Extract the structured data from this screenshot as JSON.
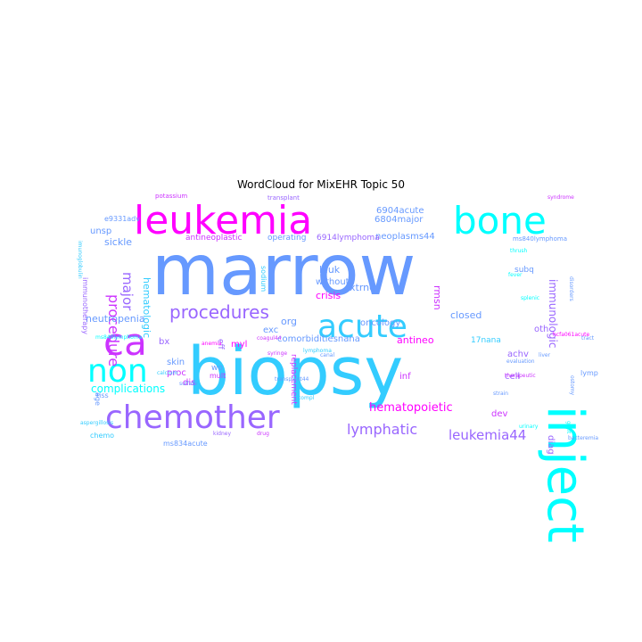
{
  "title": "WordCloud for MixEHR Topic 50",
  "words": [
    "marrow",
    "biopsy",
    "inject",
    "leukemia",
    "bone",
    "chemother",
    "acute",
    "ca",
    "non",
    "procedures",
    "procedure",
    "major",
    "lymphatic",
    "leukemia44",
    "hematopoietic",
    "complications",
    "neutropenia",
    "immunologic",
    "6904acute",
    "6804major",
    "unsp",
    "sickle",
    "hematologic",
    "neoplasms44",
    "closed",
    "cell",
    "achv",
    "oth",
    "diag",
    "xtrndl",
    "rmsn",
    "crisis",
    "without",
    "leuk",
    "antineo",
    "comorbiditiesnana",
    "exc",
    "org",
    "replacement",
    "oncology",
    "bx",
    "skin",
    "proc",
    "dis",
    "myl",
    "eff",
    "wo",
    "dev",
    "inf",
    "17nana",
    "antineoplastic",
    "operating",
    "6914lymphoma",
    "e9331adv",
    "subq",
    "age",
    "tiss",
    "mult",
    "lymp",
    "chemo",
    "ms834acute",
    "ms840lymphoma",
    "sodium",
    "immunotherapy",
    "potassium",
    "transplant",
    "syndrome",
    "thrush",
    "fever",
    "disorders",
    "urinary",
    "graft",
    "liver",
    "bacteremia",
    "anemia",
    "calcium",
    "coagul44",
    "splenic",
    "hcfa061acute",
    "imunoglobulin",
    "ms840lymphoma",
    "aspergillosis",
    "syringe",
    "canal",
    "kidney",
    "drug",
    "lymphoma",
    "transplant44",
    "sulfate",
    "compl",
    "therapeutic",
    "evaluation",
    "ostomy",
    "strain",
    "tract",
    "nerve",
    "clos"
  ],
  "colors": [
    "#ff00ff",
    "#cc33ff",
    "#9966ff",
    "#6699ff",
    "#33ccff",
    "#00ffff"
  ]
}
